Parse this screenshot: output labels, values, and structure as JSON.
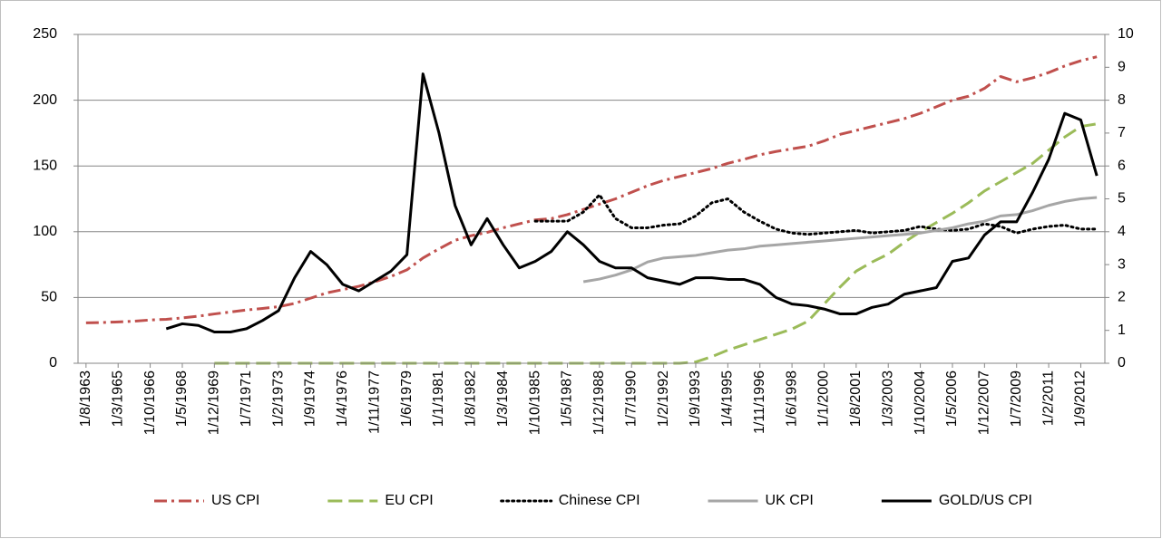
{
  "chart_data": {
    "type": "line",
    "categories": [
      "1/8/1963",
      null,
      "1/3/1965",
      null,
      "1/10/1966",
      null,
      "1/5/1968",
      null,
      "1/12/1969",
      null,
      "1/7/1971",
      null,
      "1/2/1973",
      null,
      "1/9/1974",
      null,
      "1/4/1976",
      null,
      "1/11/1977",
      null,
      "1/6/1979",
      null,
      "1/1/1981",
      null,
      "1/8/1982",
      null,
      "1/3/1984",
      null,
      "1/10/1985",
      null,
      "1/5/1987",
      null,
      "1/12/1988",
      null,
      "1/7/1990",
      null,
      "1/2/1992",
      null,
      "1/9/1993",
      null,
      "1/4/1995",
      null,
      "1/11/1996",
      null,
      "1/6/1998",
      null,
      "1/1/2000",
      null,
      "1/8/2001",
      null,
      "1/3/2003",
      null,
      "1/10/2004",
      null,
      "1/5/2006",
      null,
      "1/12/2007",
      null,
      "1/7/2009",
      null,
      "1/2/2011",
      null,
      "1/9/2012",
      null
    ],
    "series": [
      {
        "name": "US CPI",
        "color": "#c0504d",
        "dash": "dashdot",
        "values": [
          30.7,
          31.0,
          31.4,
          32.0,
          32.9,
          33.4,
          34.5,
          35.8,
          37.5,
          39.0,
          40.5,
          41.7,
          43,
          45.5,
          49.5,
          53.5,
          56,
          58.5,
          62,
          66,
          71,
          80,
          87,
          93.5,
          97,
          99.5,
          103,
          106,
          109,
          110,
          113,
          117,
          121,
          125,
          130,
          135,
          139,
          142,
          145,
          148,
          152,
          155,
          158.5,
          161,
          163,
          165,
          169,
          174,
          177,
          180,
          183,
          186,
          190,
          195,
          200,
          203,
          209,
          218,
          214,
          217,
          221,
          226,
          230,
          233
        ]
      },
      {
        "name": "EU CPI",
        "color": "#9bbb59",
        "dash": "dash",
        "values": [
          null,
          null,
          null,
          null,
          null,
          null,
          null,
          null,
          0,
          0,
          0,
          0,
          0,
          0,
          0,
          0,
          0,
          0,
          0,
          0,
          0,
          0,
          0,
          0,
          0,
          0,
          0,
          0,
          0,
          0,
          0,
          0,
          0,
          0,
          0,
          0,
          0,
          0,
          1,
          5,
          10,
          14,
          18,
          22,
          26,
          32,
          45,
          58,
          70,
          77,
          83,
          92,
          100,
          107,
          114,
          122,
          131,
          138,
          145,
          152,
          162,
          172,
          180,
          182
        ]
      },
      {
        "name": "Chinese CPI",
        "color": "#000000",
        "dash": "dot",
        "values": [
          null,
          null,
          null,
          null,
          null,
          null,
          null,
          null,
          null,
          null,
          null,
          null,
          null,
          null,
          null,
          null,
          null,
          null,
          null,
          null,
          null,
          null,
          null,
          null,
          null,
          null,
          null,
          null,
          108,
          108,
          108,
          115,
          128,
          110,
          103,
          103,
          105,
          106,
          112,
          122,
          125,
          115,
          108,
          102,
          99,
          98,
          99,
          100,
          101,
          99,
          100,
          101,
          104,
          102,
          101,
          102,
          106,
          104,
          99,
          102,
          104,
          105,
          102,
          102
        ]
      },
      {
        "name": "UK CPI",
        "color": "#a6a6a6",
        "dash": "solid",
        "values": [
          null,
          null,
          null,
          null,
          null,
          null,
          null,
          null,
          null,
          null,
          null,
          null,
          null,
          null,
          null,
          null,
          null,
          null,
          null,
          null,
          null,
          null,
          null,
          null,
          null,
          null,
          null,
          null,
          null,
          null,
          null,
          62,
          64,
          67,
          71,
          77,
          80,
          81,
          82,
          84,
          86,
          87,
          89,
          90,
          91,
          92,
          93,
          94,
          95,
          96,
          97,
          98,
          99,
          101,
          103,
          106,
          108,
          112,
          113,
          116,
          120,
          123,
          125,
          126
        ]
      },
      {
        "name": "GOLD/US CPI",
        "color": "#000000",
        "dash": "solid",
        "axis": "y2",
        "values": [
          null,
          null,
          null,
          null,
          null,
          1.05,
          1.2,
          1.15,
          0.95,
          0.95,
          1.05,
          1.3,
          1.6,
          2.6,
          3.4,
          3.0,
          2.4,
          2.2,
          2.5,
          2.8,
          3.3,
          8.8,
          7.0,
          4.8,
          3.6,
          4.4,
          3.6,
          2.9,
          3.1,
          3.4,
          4.0,
          3.6,
          3.1,
          2.9,
          2.9,
          2.6,
          2.5,
          2.4,
          2.6,
          2.6,
          2.55,
          2.55,
          2.4,
          2.0,
          1.8,
          1.75,
          1.65,
          1.5,
          1.5,
          1.7,
          1.8,
          2.1,
          2.2,
          2.3,
          3.1,
          3.2,
          3.9,
          4.3,
          4.3,
          5.2,
          6.2,
          7.6,
          7.4,
          5.7
        ]
      }
    ],
    "ylim": [
      0,
      250
    ],
    "yticks": [
      0,
      50,
      100,
      150,
      200,
      250
    ],
    "y2lim": [
      0,
      10
    ],
    "y2ticks": [
      0,
      1,
      2,
      3,
      4,
      5,
      6,
      7,
      8,
      9,
      10
    ],
    "grid": true,
    "legend": "bottom"
  }
}
